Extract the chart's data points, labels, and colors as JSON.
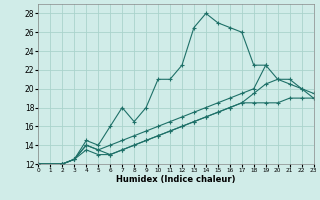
{
  "title": "",
  "xlabel": "Humidex (Indice chaleur)",
  "xlim": [
    0,
    23
  ],
  "ylim": [
    12,
    29
  ],
  "xticks": [
    0,
    1,
    2,
    3,
    4,
    5,
    6,
    7,
    8,
    9,
    10,
    11,
    12,
    13,
    14,
    15,
    16,
    17,
    18,
    19,
    20,
    21,
    22,
    23
  ],
  "yticks": [
    12,
    14,
    16,
    18,
    20,
    22,
    24,
    26,
    28
  ],
  "background_color": "#d0ece8",
  "grid_color": "#aad4cc",
  "line_color": "#1e7068",
  "lines": [
    {
      "x": [
        0,
        2,
        3,
        4,
        5,
        6,
        7,
        8,
        9,
        10,
        11,
        12,
        13,
        14,
        15,
        16,
        17,
        18,
        19
      ],
      "y": [
        12,
        12,
        12.5,
        14.5,
        14,
        16,
        18,
        16.5,
        18,
        21,
        21,
        22.5,
        26.5,
        28,
        27,
        26.5,
        26,
        22.5,
        22.5
      ]
    },
    {
      "x": [
        0,
        2,
        3,
        4,
        5,
        6,
        7,
        8,
        9,
        10,
        11,
        12,
        13,
        14,
        15,
        16,
        17,
        18,
        19,
        20,
        21,
        22,
        23
      ],
      "y": [
        12,
        12,
        12.5,
        14,
        13.5,
        14,
        14.5,
        15,
        15.5,
        16,
        16.5,
        17,
        17.5,
        18,
        18.5,
        19,
        19.5,
        20,
        22.5,
        21,
        20.5,
        20,
        19.5
      ]
    },
    {
      "x": [
        0,
        2,
        3,
        4,
        5,
        6,
        7,
        8,
        9,
        10,
        11,
        12,
        13,
        14,
        15,
        16,
        17,
        18,
        19,
        20,
        21,
        22,
        23
      ],
      "y": [
        12,
        12,
        12.5,
        14,
        13.5,
        13,
        13.5,
        14,
        14.5,
        15,
        15.5,
        16,
        16.5,
        17,
        17.5,
        18,
        18.5,
        19.5,
        20.5,
        21,
        21,
        20,
        19
      ]
    },
    {
      "x": [
        0,
        2,
        3,
        4,
        5,
        6,
        7,
        8,
        9,
        10,
        11,
        12,
        13,
        14,
        15,
        16,
        17,
        18,
        19,
        20,
        21,
        22,
        23
      ],
      "y": [
        12,
        12,
        12.5,
        13.5,
        13,
        13,
        13.5,
        14,
        14.5,
        15,
        15.5,
        16,
        16.5,
        17,
        17.5,
        18,
        18.5,
        18.5,
        18.5,
        18.5,
        19,
        19,
        19
      ]
    }
  ]
}
